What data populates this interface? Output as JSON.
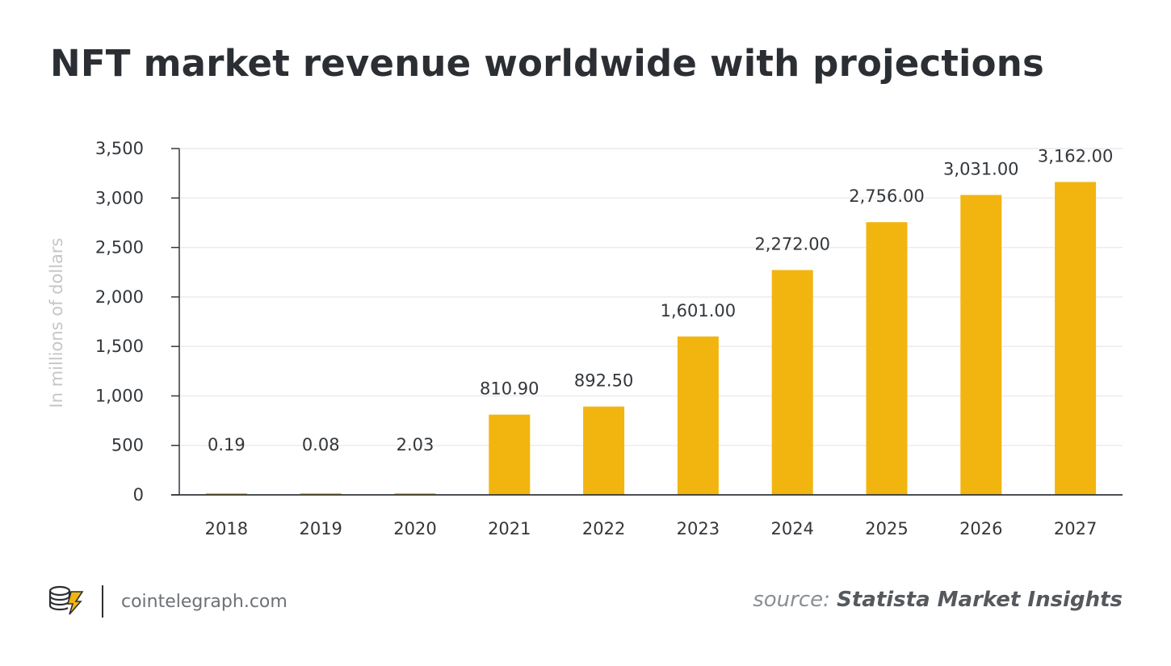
{
  "title": "NFT market revenue worldwide with projections",
  "footer": {
    "site": "cointelegraph.com",
    "source_prefix": "source:",
    "source_name": "Statista Market Insights"
  },
  "colors": {
    "bar": "#F2B50F",
    "axis": "#33373b",
    "grid": "#ececec"
  },
  "icons": {
    "logo": "cointelegraph-logo-icon"
  },
  "chart_data": {
    "type": "bar",
    "title": "NFT market revenue worldwide with projections",
    "xlabel": "",
    "ylabel": "In millions of dollars",
    "ylim": [
      0,
      3500
    ],
    "yticks": [
      0,
      500,
      1000,
      1500,
      2000,
      2500,
      3000,
      3500
    ],
    "ytick_labels": [
      "0",
      "500",
      "1,000",
      "1,500",
      "2,000",
      "2,500",
      "3,000",
      "3,500"
    ],
    "grid": true,
    "categories": [
      "2018",
      "2019",
      "2020",
      "2021",
      "2022",
      "2023",
      "2024",
      "2025",
      "2026",
      "2027"
    ],
    "values": [
      0.19,
      0.08,
      2.03,
      810.9,
      892.5,
      1601.0,
      2272.0,
      2756.0,
      3031.0,
      3162.0
    ],
    "value_labels": [
      "0.19",
      "0.08",
      "2.03",
      "810.90",
      "892.50",
      "1,601.00",
      "2,272.00",
      "2,756.00",
      "3,031.00",
      "3,162.00"
    ]
  }
}
